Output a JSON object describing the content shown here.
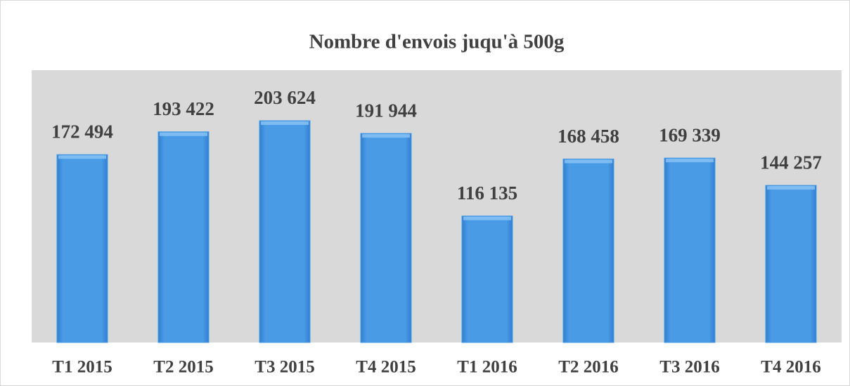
{
  "chart_data": {
    "type": "bar",
    "title": "Nombre d'envois juqu'à 500g",
    "categories": [
      "T1 2015",
      "T2 2015",
      "T3 2015",
      "T4 2015",
      "T1 2016",
      "T2 2016",
      "T3 2016",
      "T4 2016"
    ],
    "values": [
      172494,
      193422,
      203624,
      191944,
      116135,
      168458,
      169339,
      144257
    ],
    "value_labels": [
      "172 494",
      "193 422",
      "203 624",
      "191 944",
      "116 135",
      "168 458",
      "169 339",
      "144 257"
    ],
    "color": "#4a9be6",
    "ylim": [
      0,
      250000
    ]
  }
}
